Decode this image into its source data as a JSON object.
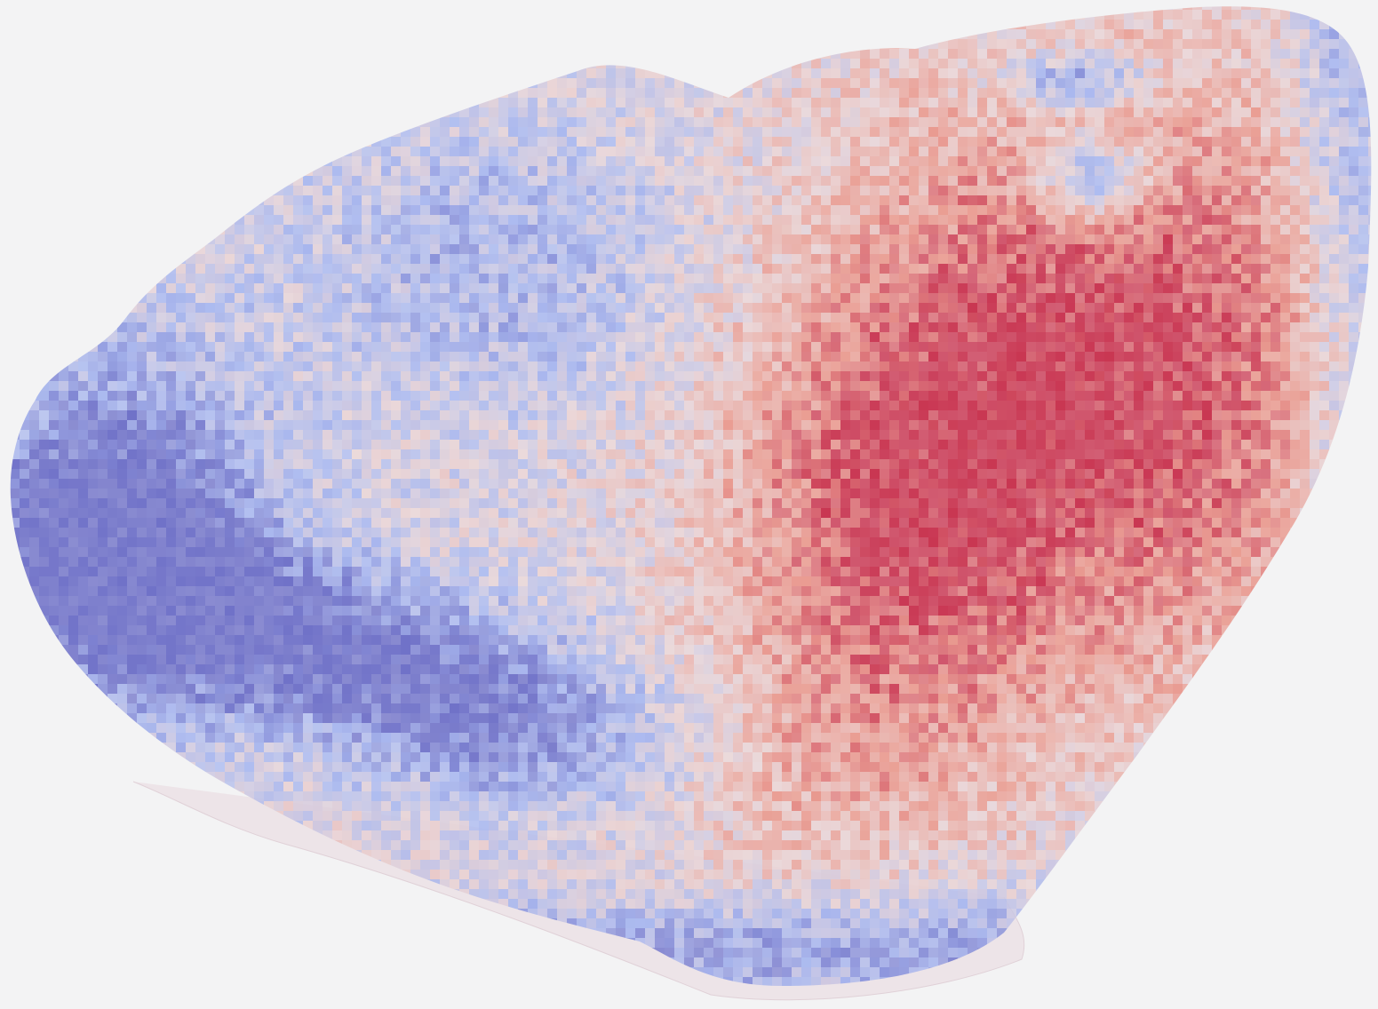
{
  "image": {
    "kind": "tissue-section-heatmap-overlay",
    "background_color": "#f3f3f4",
    "tissue_base_color": "#e9d6dc",
    "colormap": {
      "name": "coolwarm",
      "low": "#6d6fc7",
      "mid_low": "#a9b8ef",
      "mid": "#e8d2d4",
      "mid_high": "#e99a8f",
      "high": "#c8334f"
    },
    "regions": [
      {
        "name": "left-lobe-low",
        "level": 0.05
      },
      {
        "name": "lower-band-low",
        "level": 0.08
      },
      {
        "name": "upper-middle-mixed",
        "level": 0.4
      },
      {
        "name": "central-mixed",
        "level": 0.5
      },
      {
        "name": "right-lobe-high",
        "level": 0.9
      },
      {
        "name": "capsule-rim-low",
        "level": 0.25
      }
    ]
  }
}
